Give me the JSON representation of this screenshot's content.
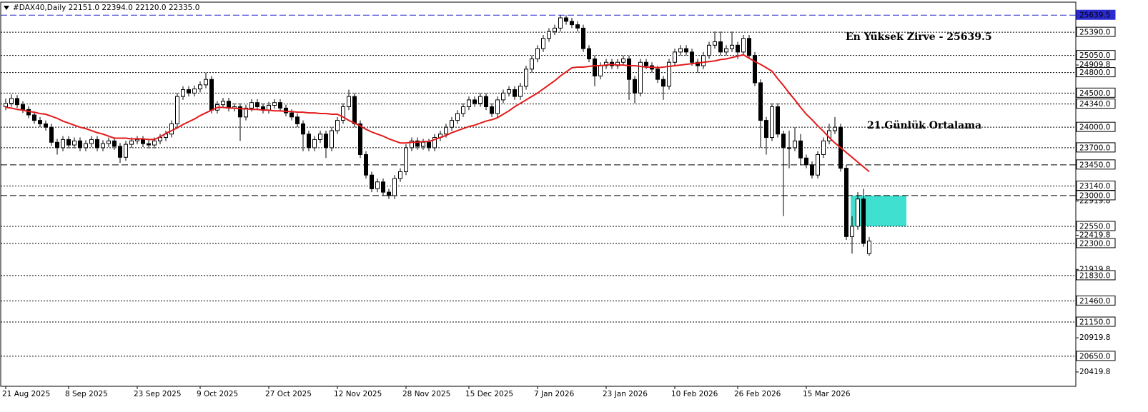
{
  "chart_data": {
    "type": "candlestick",
    "header": "#DAX40,Daily  22151.0 22394.0 22120.0 22335.0",
    "ylim": [
      20210,
      25830
    ],
    "yticks": [
      24909.8,
      22919.8,
      22419.8,
      21919.8,
      20919.8,
      20419.8
    ],
    "up_color": "#ffffff",
    "down_color": "#000000",
    "categories": [
      "21 Aug 2025",
      null,
      null,
      null,
      null,
      null,
      null,
      null,
      null,
      null,
      null,
      "8 Sep 2025",
      null,
      null,
      null,
      null,
      null,
      null,
      null,
      null,
      null,
      null,
      null,
      "23 Sep 2025",
      null,
      null,
      null,
      null,
      null,
      null,
      null,
      null,
      null,
      null,
      "9 Oct 2025",
      null,
      null,
      null,
      null,
      null,
      null,
      null,
      null,
      null,
      null,
      null,
      "27 Oct 2025",
      null,
      null,
      null,
      null,
      null,
      null,
      null,
      null,
      null,
      null,
      null,
      "12 Nov 2025",
      null,
      null,
      null,
      null,
      null,
      null,
      null,
      null,
      null,
      null,
      null,
      "28 Nov 2025",
      null,
      null,
      null,
      null,
      null,
      null,
      null,
      null,
      null,
      null,
      "15 Dec 2025",
      null,
      null,
      null,
      null,
      null,
      null,
      null,
      null,
      null,
      null,
      null,
      "7 Jan 2026",
      null,
      null,
      null,
      null,
      null,
      null,
      null,
      null,
      null,
      null,
      null,
      "23 Jan 2026",
      null,
      null,
      null,
      null,
      null,
      null,
      null,
      null,
      null,
      null,
      null,
      "10 Feb 2026",
      null,
      null,
      null,
      null,
      null,
      null,
      null,
      null,
      null,
      null,
      "26 Feb 2026",
      null,
      null,
      null,
      null,
      null,
      null,
      null,
      null,
      null,
      null,
      null,
      "15 Mar 2026",
      null,
      null,
      null,
      null,
      null,
      null,
      null,
      null,
      null,
      null,
      null
    ],
    "ohlc": [
      [
        24300,
        24420,
        24250,
        24350
      ],
      [
        24350,
        24480,
        24300,
        24420
      ],
      [
        24420,
        24470,
        24280,
        24330
      ],
      [
        24330,
        24380,
        24210,
        24260
      ],
      [
        24260,
        24310,
        24130,
        24180
      ],
      [
        24180,
        24230,
        24050,
        24100
      ],
      [
        24100,
        24150,
        24000,
        24050
      ],
      [
        24050,
        24100,
        23950,
        24000
      ],
      [
        24000,
        24050,
        23730,
        23780
      ],
      [
        23780,
        23830,
        23600,
        23700
      ],
      [
        23700,
        23870,
        23650,
        23820
      ],
      [
        23820,
        23870,
        23690,
        23740
      ],
      [
        23740,
        23850,
        23690,
        23800
      ],
      [
        23800,
        23850,
        23650,
        23700
      ],
      [
        23700,
        23810,
        23650,
        23760
      ],
      [
        23760,
        23870,
        23710,
        23820
      ],
      [
        23820,
        23870,
        23650,
        23700
      ],
      [
        23700,
        23810,
        23650,
        23760
      ],
      [
        23760,
        23850,
        23710,
        23800
      ],
      [
        23800,
        23850,
        23670,
        23720
      ],
      [
        23720,
        23770,
        23480,
        23560
      ],
      [
        23560,
        23800,
        23510,
        23750
      ],
      [
        23750,
        23850,
        23700,
        23800
      ],
      [
        23800,
        23870,
        23750,
        23820
      ],
      [
        23820,
        23870,
        23710,
        23760
      ],
      [
        23760,
        23810,
        23690,
        23740
      ],
      [
        23740,
        23850,
        23690,
        23800
      ],
      [
        23800,
        23900,
        23750,
        23850
      ],
      [
        23850,
        23950,
        23800,
        23900
      ],
      [
        23900,
        24100,
        23850,
        24050
      ],
      [
        24050,
        24500,
        24000,
        24450
      ],
      [
        24450,
        24600,
        24400,
        24550
      ],
      [
        24550,
        24600,
        24450,
        24500
      ],
      [
        24500,
        24610,
        24450,
        24560
      ],
      [
        24560,
        24670,
        24510,
        24620
      ],
      [
        24620,
        24800,
        24570,
        24700
      ],
      [
        24700,
        24750,
        24200,
        24250
      ],
      [
        24250,
        24380,
        24200,
        24330
      ],
      [
        24330,
        24430,
        24280,
        24380
      ],
      [
        24380,
        24430,
        24230,
        24280
      ],
      [
        24280,
        24350,
        24230,
        24300
      ],
      [
        24300,
        24350,
        23800,
        24150
      ],
      [
        24150,
        24330,
        24100,
        24280
      ],
      [
        24280,
        24410,
        24230,
        24360
      ],
      [
        24360,
        24410,
        24250,
        24300
      ],
      [
        24300,
        24350,
        24200,
        24250
      ],
      [
        24250,
        24370,
        24200,
        24320
      ],
      [
        24320,
        24410,
        24270,
        24360
      ],
      [
        24360,
        24410,
        24230,
        24280
      ],
      [
        24280,
        24330,
        24160,
        24210
      ],
      [
        24210,
        24260,
        24100,
        24150
      ],
      [
        24150,
        24200,
        24000,
        24050
      ],
      [
        24050,
        24100,
        23650,
        23900
      ],
      [
        23900,
        23950,
        23650,
        23700
      ],
      [
        23700,
        23870,
        23650,
        23820
      ],
      [
        23820,
        23950,
        23770,
        23900
      ],
      [
        23900,
        23950,
        23550,
        23700
      ],
      [
        23700,
        24000,
        23650,
        23950
      ],
      [
        23950,
        24150,
        23900,
        24100
      ],
      [
        24100,
        24350,
        24050,
        24300
      ],
      [
        24300,
        24550,
        24250,
        24450
      ],
      [
        24450,
        24500,
        24000,
        24050
      ],
      [
        24050,
        24100,
        23550,
        23600
      ],
      [
        23600,
        23650,
        23250,
        23300
      ],
      [
        23300,
        23350,
        23050,
        23100
      ],
      [
        23100,
        23250,
        23050,
        23200
      ],
      [
        23200,
        23250,
        23000,
        23050
      ],
      [
        23050,
        23100,
        22950,
        23000
      ],
      [
        23000,
        23300,
        22950,
        23250
      ],
      [
        23250,
        23400,
        23200,
        23350
      ],
      [
        23350,
        23750,
        23300,
        23700
      ],
      [
        23700,
        23850,
        23650,
        23800
      ],
      [
        23800,
        23850,
        23670,
        23720
      ],
      [
        23720,
        23830,
        23670,
        23780
      ],
      [
        23780,
        23830,
        23650,
        23700
      ],
      [
        23700,
        23900,
        23650,
        23850
      ],
      [
        23850,
        23950,
        23800,
        23900
      ],
      [
        23900,
        24050,
        23850,
        24000
      ],
      [
        24000,
        24150,
        23950,
        24100
      ],
      [
        24100,
        24250,
        24050,
        24200
      ],
      [
        24200,
        24350,
        24150,
        24300
      ],
      [
        24300,
        24450,
        24250,
        24400
      ],
      [
        24400,
        24450,
        24300,
        24350
      ],
      [
        24350,
        24500,
        24300,
        24450
      ],
      [
        24450,
        24500,
        24250,
        24300
      ],
      [
        24300,
        24350,
        24150,
        24200
      ],
      [
        24200,
        24450,
        24150,
        24400
      ],
      [
        24400,
        24550,
        24350,
        24500
      ],
      [
        24500,
        24600,
        24450,
        24550
      ],
      [
        24550,
        24600,
        24400,
        24450
      ],
      [
        24450,
        24650,
        24400,
        24600
      ],
      [
        24600,
        24900,
        24550,
        24850
      ],
      [
        24850,
        25050,
        24800,
        25000
      ],
      [
        25000,
        25200,
        24950,
        25150
      ],
      [
        25150,
        25350,
        25100,
        25300
      ],
      [
        25300,
        25450,
        25250,
        25400
      ],
      [
        25400,
        25500,
        25350,
        25450
      ],
      [
        25450,
        25640,
        25400,
        25600
      ],
      [
        25600,
        25640,
        25500,
        25550
      ],
      [
        25550,
        25600,
        25450,
        25500
      ],
      [
        25500,
        25550,
        25400,
        25450
      ],
      [
        25450,
        25500,
        25100,
        25150
      ],
      [
        25150,
        25200,
        24950,
        25000
      ],
      [
        25000,
        25050,
        24600,
        24750
      ],
      [
        24750,
        24950,
        24700,
        24900
      ],
      [
        24900,
        25000,
        24850,
        24950
      ],
      [
        24950,
        25000,
        24850,
        24900
      ],
      [
        24900,
        25000,
        24850,
        24950
      ],
      [
        24950,
        25050,
        24900,
        25000
      ],
      [
        25000,
        25050,
        24400,
        24700
      ],
      [
        24700,
        24750,
        24350,
        24500
      ],
      [
        24500,
        25000,
        24450,
        24950
      ],
      [
        24950,
        25000,
        24850,
        24900
      ],
      [
        24900,
        24950,
        24800,
        24850
      ],
      [
        24850,
        24900,
        24650,
        24700
      ],
      [
        24700,
        24750,
        24400,
        24600
      ],
      [
        24600,
        25000,
        24550,
        24950
      ],
      [
        24950,
        25150,
        24900,
        25100
      ],
      [
        25100,
        25200,
        25050,
        25150
      ],
      [
        25150,
        25200,
        25050,
        25100
      ],
      [
        25100,
        25150,
        24900,
        24950
      ],
      [
        24950,
        25000,
        24800,
        24900
      ],
      [
        24900,
        25100,
        24850,
        25050
      ],
      [
        25050,
        25250,
        25000,
        25200
      ],
      [
        25200,
        25400,
        25150,
        25250
      ],
      [
        25250,
        25400,
        25050,
        25100
      ],
      [
        25100,
        25200,
        25050,
        25150
      ],
      [
        25150,
        25400,
        25100,
        25200
      ],
      [
        25200,
        25250,
        25000,
        25100
      ],
      [
        25100,
        25350,
        25050,
        25300
      ],
      [
        25300,
        25350,
        25000,
        25050
      ],
      [
        25050,
        25100,
        24600,
        24650
      ],
      [
        24650,
        24700,
        23700,
        24100
      ],
      [
        24100,
        24150,
        23600,
        23850
      ],
      [
        23850,
        24350,
        23800,
        24300
      ],
      [
        24300,
        24350,
        23850,
        23900
      ],
      [
        23900,
        23950,
        22700,
        23700
      ],
      [
        23700,
        23950,
        23400,
        23700
      ],
      [
        23700,
        24000,
        23650,
        23800
      ],
      [
        23800,
        23900,
        23450,
        23550
      ],
      [
        23550,
        23600,
        23400,
        23450
      ],
      [
        23450,
        23500,
        23250,
        23300
      ],
      [
        23300,
        23650,
        23250,
        23600
      ],
      [
        23600,
        23850,
        23550,
        23800
      ],
      [
        23800,
        24050,
        23750,
        23950
      ],
      [
        23950,
        24150,
        23900,
        24000
      ],
      [
        24000,
        24050,
        23350,
        23400
      ],
      [
        23400,
        23450,
        22350,
        22400
      ],
      [
        22400,
        22700,
        22150,
        22550
      ],
      [
        22550,
        23050,
        22500,
        22950
      ],
      [
        22950,
        23100,
        22250,
        22300
      ],
      [
        22151,
        22394,
        22120,
        22335
      ]
    ],
    "ma": {
      "name": "21.Günlük Ortalama",
      "color": "#e41a1a",
      "values": [
        24290,
        24280,
        24260,
        24250,
        24230,
        24220,
        24200,
        24190,
        24160,
        24130,
        24090,
        24060,
        24030,
        24000,
        23980,
        23950,
        23920,
        23900,
        23870,
        23840,
        23840,
        23840,
        23830,
        23830,
        23830,
        23820,
        23820,
        23860,
        23910,
        23950,
        23990,
        24040,
        24080,
        24120,
        24170,
        24210,
        24250,
        24290,
        24290,
        24280,
        24280,
        24270,
        24270,
        24260,
        24260,
        24250,
        24250,
        24240,
        24240,
        24230,
        24230,
        24220,
        24220,
        24210,
        24210,
        24200,
        24200,
        24190,
        24190,
        24150,
        24100,
        24060,
        24020,
        23970,
        23930,
        23900,
        23870,
        23830,
        23800,
        23770,
        23770,
        23780,
        23780,
        23790,
        23790,
        23820,
        23850,
        23880,
        23920,
        23950,
        23980,
        24010,
        24030,
        24060,
        24090,
        24110,
        24140,
        24190,
        24240,
        24300,
        24350,
        24400,
        24450,
        24500,
        24560,
        24620,
        24680,
        24750,
        24810,
        24870,
        24880,
        24880,
        24890,
        24900,
        24900,
        24910,
        24920,
        24910,
        24910,
        24900,
        24900,
        24890,
        24880,
        24880,
        24870,
        24880,
        24890,
        24900,
        24910,
        24920,
        24930,
        24940,
        24950,
        24960,
        24970,
        24990,
        25000,
        25020,
        25040,
        25060,
        25010,
        24960,
        24920,
        24870,
        24820,
        24710,
        24610,
        24500,
        24400,
        24290,
        24190,
        24110,
        24020,
        23940,
        23850,
        23770,
        23700,
        23630,
        23560,
        23490,
        23420,
        23350
      ]
    },
    "levels": [
      {
        "value": 25639.5,
        "label": "25639.5",
        "style": "dashed",
        "color": "#2a2ad0"
      },
      {
        "value": 25390,
        "label": "25390.0",
        "style": "dotted",
        "color": "#000000"
      },
      {
        "value": 25050,
        "label": "25050.0",
        "style": "dotted",
        "color": "#000000"
      },
      {
        "value": 24800,
        "label": "24800.0",
        "style": "dotted",
        "color": "#000000"
      },
      {
        "value": 24500,
        "label": "24500.0",
        "style": "dotted",
        "color": "#000000"
      },
      {
        "value": 24340,
        "label": "24340.0",
        "style": "dotted",
        "color": "#000000"
      },
      {
        "value": 24000,
        "label": "24000.0",
        "style": "dotted",
        "color": "#000000"
      },
      {
        "value": 23700,
        "label": "23700.0",
        "style": "dotted",
        "color": "#000000"
      },
      {
        "value": 23450,
        "label": "23450.0",
        "style": "dashed",
        "color": "#000000"
      },
      {
        "value": 23140,
        "label": "23140.0",
        "style": "dotted",
        "color": "#000000"
      },
      {
        "value": 23000,
        "label": "23000.0",
        "style": "dashed",
        "color": "#000000"
      },
      {
        "value": 22550,
        "label": "22550.0",
        "style": "dotted",
        "color": "#000000"
      },
      {
        "value": 22300,
        "label": "22300.0",
        "style": "dotted",
        "color": "#000000"
      },
      {
        "value": 21830,
        "label": "21830.0",
        "style": "dotted",
        "color": "#000000"
      },
      {
        "value": 21460,
        "label": "21460.0",
        "style": "dotted",
        "color": "#000000"
      },
      {
        "value": 21150,
        "label": "21150.0",
        "style": "dotted",
        "color": "#000000"
      },
      {
        "value": 20650,
        "label": "20650.0",
        "style": "dotted",
        "color": "#000000"
      }
    ],
    "zone": {
      "top": 23000,
      "bottom": 22550,
      "color": "#40e0d0"
    },
    "annotations": [
      {
        "text": "En Yüksek Zirve - 25639.5",
        "color": "#1a1ab0"
      },
      {
        "text": "21.Günlük Ortalama",
        "color": "#d81b3c"
      }
    ]
  }
}
